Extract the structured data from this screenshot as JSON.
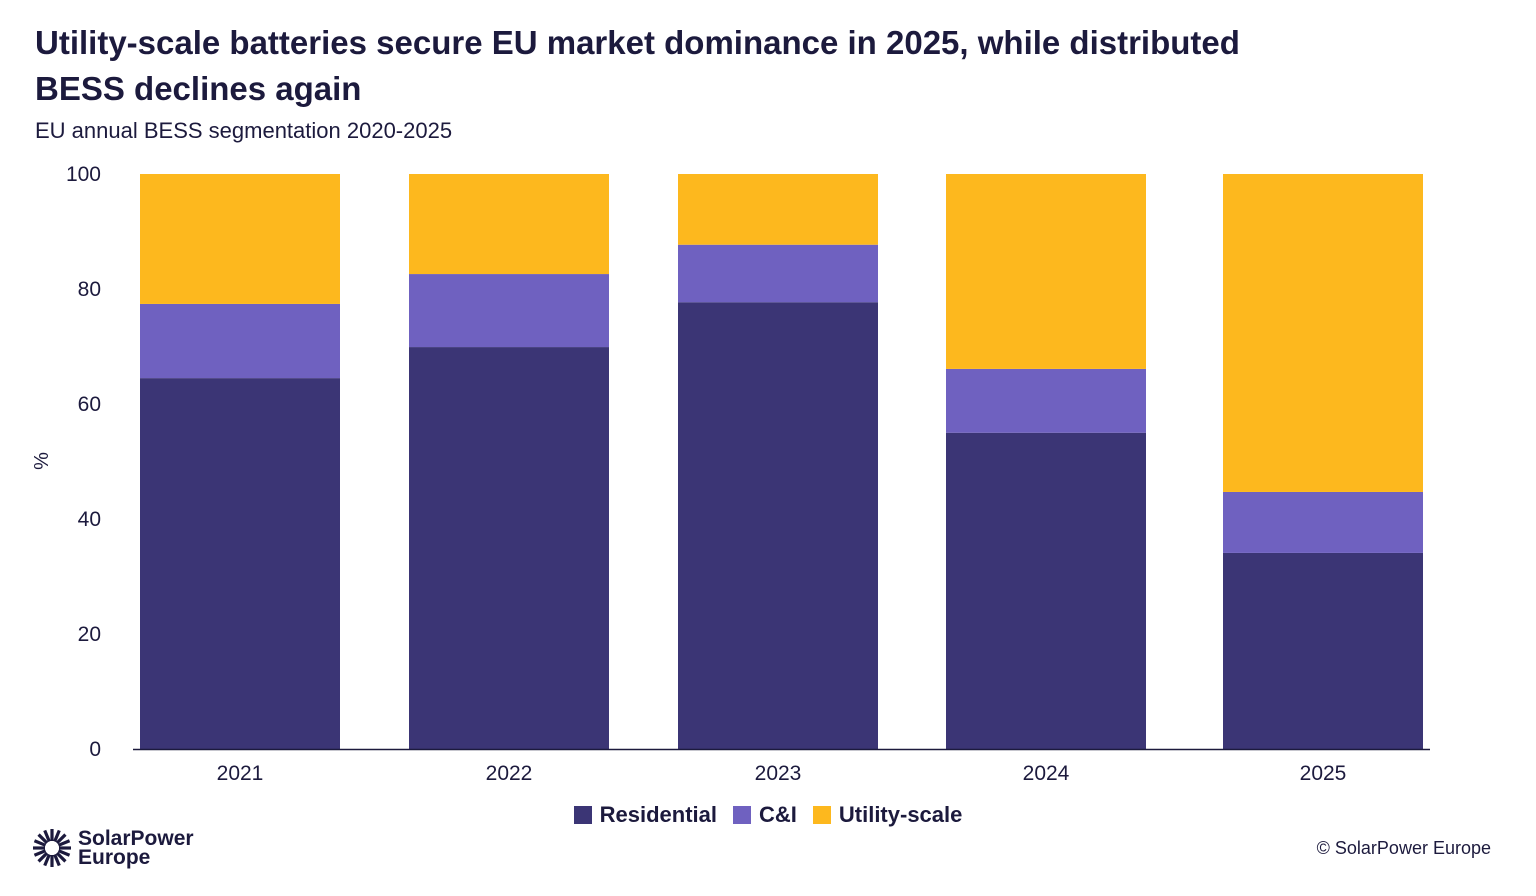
{
  "chart_data": {
    "type": "bar",
    "stacked": true,
    "title": "Utility-scale batteries secure EU market dominance in 2025, while distributed BESS declines again",
    "subtitle": "EU annual BESS segmentation 2020-2025",
    "xlabel": "",
    "ylabel": "%",
    "ylim": [
      0,
      100
    ],
    "yticks": [
      0,
      20,
      40,
      60,
      80,
      100
    ],
    "grid": false,
    "legend": "bottom-center",
    "categories": [
      "2021",
      "2022",
      "2023",
      "2024",
      "2025"
    ],
    "series": [
      {
        "name": "Residential",
        "color": "#3b3575",
        "values": [
          64.5,
          69.9,
          77.7,
          55.0,
          34.1
        ]
      },
      {
        "name": "C&I",
        "color": "#6f61c0",
        "values": [
          12.9,
          12.7,
          10.0,
          11.1,
          10.6
        ]
      },
      {
        "name": "Utility-scale",
        "color": "#fdb81e",
        "values": [
          22.6,
          17.4,
          12.3,
          33.9,
          55.3
        ]
      }
    ]
  },
  "footer": {
    "logo_text_line1": "SolarPower",
    "logo_text_line2": "Europe",
    "copyright": "© SolarPower Europe"
  }
}
